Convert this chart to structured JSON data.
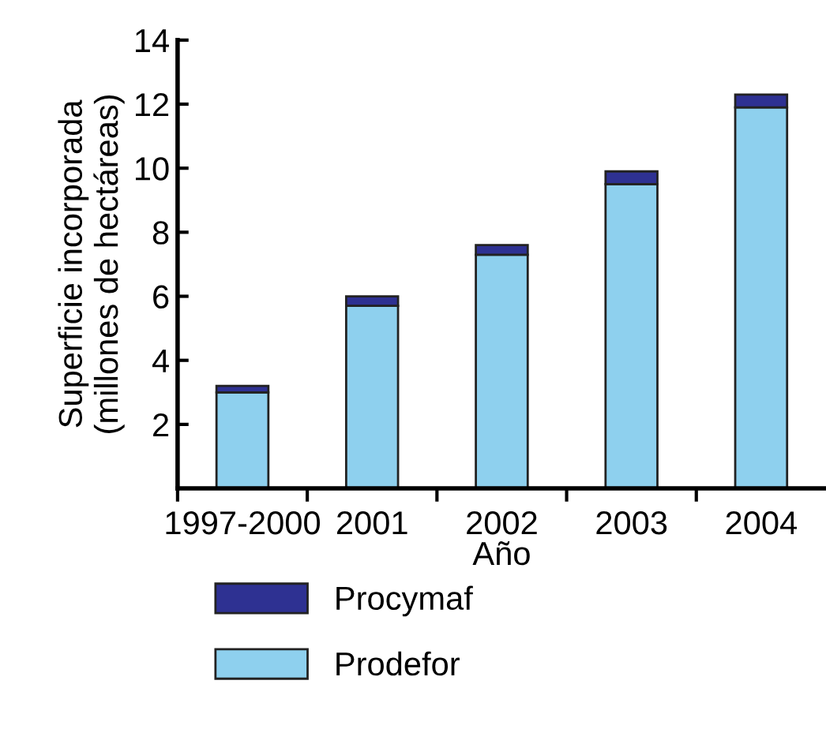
{
  "chart_data": {
    "type": "bar",
    "stacked": true,
    "xlabel": "Año",
    "ylabel": "Superficie incorporada\n(millones de hectáreas)",
    "categories": [
      "1997-2000",
      "2001",
      "2002",
      "2003",
      "2004"
    ],
    "series": [
      {
        "name": "Prodefor",
        "color": "#8ed0ee",
        "values": [
          3.0,
          5.7,
          7.3,
          9.5,
          11.9
        ]
      },
      {
        "name": "Procymaf",
        "color": "#2e3192",
        "values": [
          0.2,
          0.3,
          0.3,
          0.4,
          0.4
        ]
      }
    ],
    "ylim": [
      0,
      14
    ],
    "yticks": [
      2,
      4,
      6,
      8,
      10,
      12,
      14
    ],
    "grid": false,
    "legend": "bottom"
  }
}
